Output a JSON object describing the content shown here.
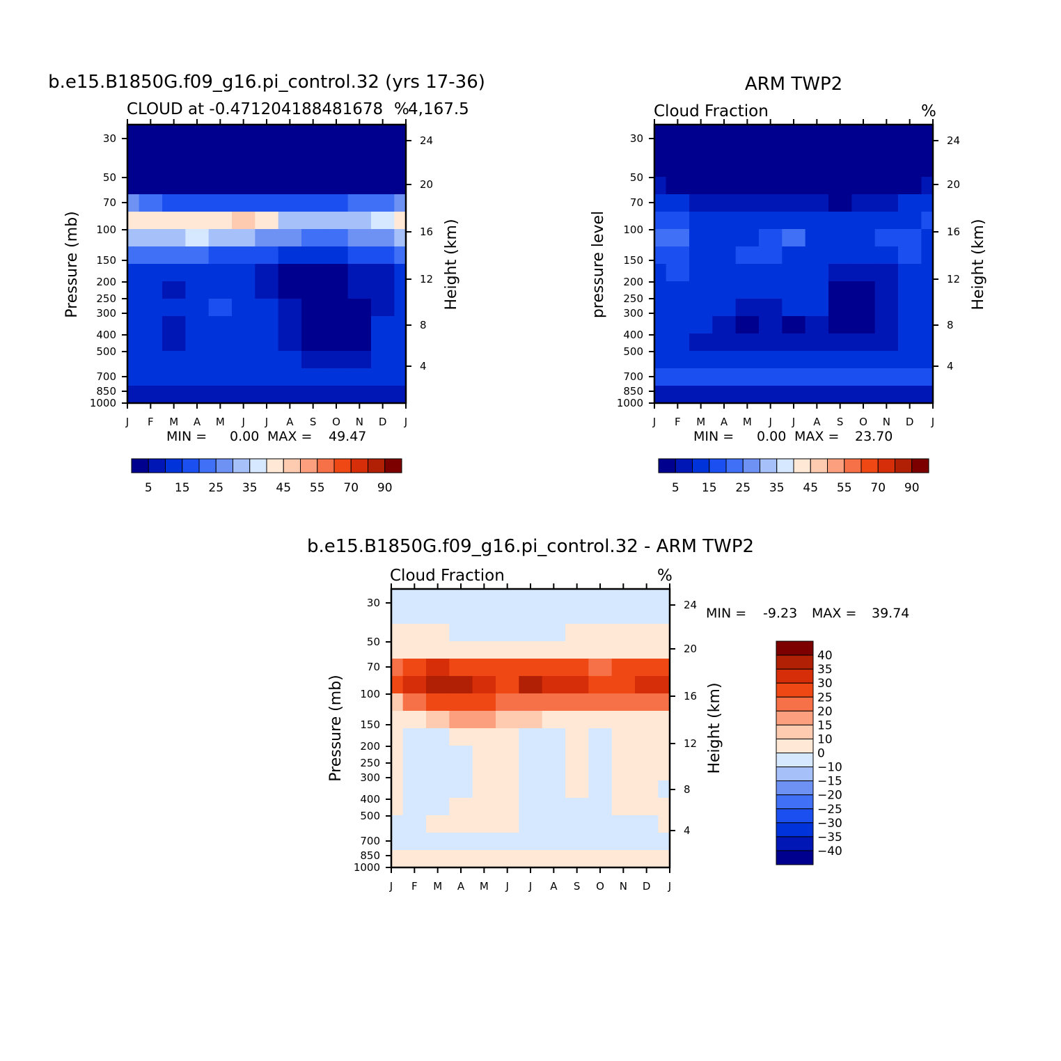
{
  "colors": {
    "seq": [
      "#00008f",
      "#0016b5",
      "#0033d9",
      "#1c4ff0",
      "#3f70f5",
      "#6d92f4",
      "#a6c0fa",
      "#d6e8ff",
      "#ffe9d6",
      "#ffcbb0",
      "#fb9f7f",
      "#f77148",
      "#f04814",
      "#d62e08",
      "#b11f05",
      "#7c0000"
    ],
    "diff": [
      "#00008f",
      "#0016b5",
      "#0033d9",
      "#1c4ff0",
      "#3f70f5",
      "#6d92f4",
      "#a6c0fa",
      "#d6e8ff",
      "#ffe9d6",
      "#ffcbb0",
      "#fb9f7f",
      "#f77148",
      "#f04814",
      "#d62e08",
      "#b11f05",
      "#7c0000"
    ]
  },
  "panels": {
    "model": {
      "title": "b.e15.B1850G.f09_g16.pi_control.32 (yrs 17-36)",
      "subtitle": "CLOUD at -0.471204188481678",
      "subtitle_right_a": "%",
      "subtitle_right_b": "4,167.5",
      "ylabel": "Pressure (mb)",
      "ylabel_right": "Height (km)",
      "min_label": "MIN =",
      "min_value": "0.00",
      "max_label": "MAX =",
      "max_value": "49.47"
    },
    "obs": {
      "title": "ARM TWP2",
      "subtitle": "Cloud Fraction",
      "subtitle_right": "%",
      "ylabel": "pressure level",
      "ylabel_right": "Height (km)",
      "min_label": "MIN =",
      "min_value": "0.00",
      "max_label": "MAX =",
      "max_value": "23.70"
    },
    "diff": {
      "title": "b.e15.B1850G.f09_g16.pi_control.32 - ARM TWP2",
      "subtitle": "Cloud Fraction",
      "subtitle_right": "%",
      "ylabel": "Pressure (mb)",
      "ylabel_right": "Height (km)",
      "min_label": "MIN =",
      "min_value": "-9.23",
      "max_label": "MAX =",
      "max_value": "39.74"
    }
  },
  "chart_data": [
    {
      "type": "heatmap",
      "name": "model",
      "x": [
        "J",
        "F",
        "M",
        "A",
        "M",
        "J",
        "J",
        "A",
        "S",
        "O",
        "N",
        "D",
        "J"
      ],
      "y_pressure_ticks": [
        "30",
        "50",
        "70",
        "100",
        "150",
        "200",
        "250",
        "300",
        "400",
        "500",
        "700",
        "850",
        "1000"
      ],
      "y_height_ticks": [
        "24",
        "20",
        "16",
        "12",
        "8",
        "4"
      ],
      "levels": [
        5,
        10,
        15,
        20,
        25,
        30,
        35,
        40,
        45,
        50,
        55,
        60,
        70,
        80,
        90
      ],
      "colorbar_labels": [
        "5",
        "15",
        "25",
        "35",
        "45",
        "55",
        "70",
        "90"
      ],
      "ylim": [
        1000,
        20
      ],
      "values": [
        [
          0,
          0,
          0,
          0,
          0,
          0,
          0,
          0,
          0,
          0,
          0,
          0,
          0
        ],
        [
          0,
          0,
          0,
          0,
          0,
          0,
          0,
          0,
          0,
          0,
          0,
          0,
          0
        ],
        [
          0,
          0,
          0,
          0,
          0,
          0,
          0,
          0,
          0,
          0,
          0,
          0,
          0
        ],
        [
          4,
          3,
          2,
          2,
          2,
          2,
          2,
          2,
          2,
          2,
          3,
          3,
          4
        ],
        [
          25,
          22,
          18,
          15,
          15,
          15,
          18,
          15,
          15,
          18,
          20,
          22,
          25
        ],
        [
          40,
          42,
          44,
          40,
          42,
          46,
          40,
          34,
          33,
          33,
          34,
          35,
          40
        ],
        [
          30,
          32,
          30,
          36,
          32,
          30,
          28,
          26,
          24,
          24,
          26,
          28,
          30
        ],
        [
          22,
          24,
          24,
          20,
          18,
          18,
          16,
          14,
          14,
          14,
          16,
          18,
          20
        ],
        [
          14,
          14,
          12,
          12,
          12,
          10,
          8,
          4,
          4,
          4,
          6,
          8,
          10
        ],
        [
          12,
          12,
          8,
          12,
          12,
          12,
          8,
          4,
          4,
          4,
          6,
          8,
          10
        ],
        [
          12,
          12,
          10,
          14,
          16,
          12,
          10,
          6,
          4,
          4,
          4,
          8,
          10
        ],
        [
          12,
          12,
          8,
          12,
          12,
          12,
          10,
          6,
          4,
          4,
          4,
          10,
          12
        ],
        [
          12,
          12,
          6,
          12,
          12,
          12,
          10,
          6,
          4,
          4,
          4,
          10,
          12
        ],
        [
          12,
          12,
          10,
          12,
          12,
          12,
          12,
          10,
          8,
          8,
          8,
          10,
          12
        ],
        [
          14,
          14,
          14,
          14,
          14,
          14,
          14,
          14,
          14,
          14,
          14,
          14,
          14
        ],
        [
          8,
          8,
          8,
          8,
          8,
          8,
          8,
          8,
          8,
          8,
          8,
          8,
          8
        ]
      ]
    },
    {
      "type": "heatmap",
      "name": "obs",
      "x": [
        "J",
        "F",
        "M",
        "A",
        "M",
        "J",
        "J",
        "A",
        "S",
        "O",
        "N",
        "D",
        "J"
      ],
      "y_pressure_ticks": [
        "30",
        "50",
        "70",
        "100",
        "150",
        "200",
        "250",
        "300",
        "400",
        "500",
        "700",
        "850",
        "1000"
      ],
      "y_height_ticks": [
        "24",
        "20",
        "16",
        "12",
        "8",
        "4"
      ],
      "levels": [
        5,
        10,
        15,
        20,
        25,
        30,
        35,
        40,
        45,
        50,
        55,
        60,
        70,
        80,
        90
      ],
      "colorbar_labels": [
        "5",
        "15",
        "25",
        "35",
        "45",
        "55",
        "70",
        "90"
      ],
      "ylim": [
        1000,
        20
      ],
      "values": [
        [
          0,
          0,
          0,
          0,
          0,
          0,
          0,
          0,
          0,
          0,
          0,
          0,
          0
        ],
        [
          0,
          0,
          0,
          0,
          0,
          0,
          0,
          0,
          0,
          0,
          0,
          0,
          0
        ],
        [
          0,
          0,
          0,
          0,
          0,
          0,
          0,
          0,
          0,
          0,
          0,
          0,
          0
        ],
        [
          6,
          4,
          2,
          2,
          2,
          2,
          2,
          2,
          2,
          2,
          2,
          4,
          8
        ],
        [
          12,
          10,
          8,
          6,
          6,
          8,
          6,
          6,
          4,
          6,
          8,
          10,
          14
        ],
        [
          18,
          16,
          14,
          12,
          12,
          14,
          12,
          12,
          12,
          12,
          14,
          14,
          16
        ],
        [
          24,
          22,
          12,
          12,
          14,
          18,
          20,
          12,
          14,
          14,
          16,
          16,
          14
        ],
        [
          18,
          18,
          14,
          12,
          16,
          16,
          12,
          12,
          12,
          12,
          14,
          16,
          14
        ],
        [
          14,
          18,
          12,
          12,
          12,
          12,
          10,
          12,
          8,
          6,
          8,
          10,
          12
        ],
        [
          14,
          14,
          12,
          12,
          10,
          10,
          10,
          10,
          4,
          4,
          8,
          10,
          12
        ],
        [
          12,
          12,
          10,
          10,
          8,
          8,
          10,
          10,
          4,
          4,
          8,
          10,
          12
        ],
        [
          12,
          12,
          10,
          8,
          4,
          8,
          4,
          8,
          4,
          4,
          8,
          10,
          12
        ],
        [
          12,
          10,
          8,
          8,
          8,
          8,
          8,
          8,
          8,
          8,
          8,
          10,
          12
        ],
        [
          14,
          12,
          12,
          12,
          12,
          12,
          12,
          12,
          12,
          12,
          12,
          12,
          14
        ],
        [
          16,
          16,
          16,
          16,
          16,
          16,
          16,
          16,
          16,
          16,
          16,
          16,
          16
        ],
        [
          6,
          6,
          6,
          6,
          6,
          6,
          6,
          6,
          6,
          6,
          6,
          6,
          6
        ]
      ]
    },
    {
      "type": "heatmap",
      "name": "diff",
      "x": [
        "J",
        "F",
        "M",
        "A",
        "M",
        "J",
        "J",
        "A",
        "S",
        "O",
        "N",
        "D",
        "J"
      ],
      "y_pressure_ticks": [
        "30",
        "50",
        "70",
        "100",
        "150",
        "200",
        "250",
        "300",
        "400",
        "500",
        "700",
        "850",
        "1000"
      ],
      "y_height_ticks": [
        "24",
        "20",
        "16",
        "12",
        "8",
        "4"
      ],
      "levels": [
        -40,
        -35,
        -30,
        -25,
        -20,
        -15,
        -10,
        0,
        10,
        15,
        20,
        25,
        30,
        35,
        40
      ],
      "colorbar_labels": [
        "40",
        "35",
        "30",
        "25",
        "20",
        "15",
        "10",
        "0",
        "-10",
        "-15",
        "-20",
        "-25",
        "-30",
        "-35",
        "-40"
      ],
      "ylim": [
        1000,
        20
      ],
      "values": [
        [
          -2,
          -2,
          -2,
          -2,
          -2,
          -2,
          -2,
          -2,
          -2,
          -2,
          -2,
          -2,
          -2
        ],
        [
          -2,
          -2,
          -2,
          -2,
          -2,
          -2,
          -2,
          -2,
          -2,
          -2,
          -2,
          -2,
          -2
        ],
        [
          2,
          2,
          2,
          -2,
          -2,
          -2,
          -2,
          -2,
          2,
          2,
          2,
          2,
          2
        ],
        [
          4,
          6,
          6,
          6,
          6,
          6,
          6,
          6,
          6,
          6,
          6,
          6,
          6
        ],
        [
          22,
          26,
          30,
          28,
          26,
          26,
          28,
          26,
          26,
          24,
          26,
          28,
          26
        ],
        [
          26,
          30,
          38,
          36,
          30,
          28,
          36,
          30,
          34,
          28,
          28,
          34,
          30
        ],
        [
          12,
          22,
          26,
          28,
          26,
          24,
          24,
          20,
          20,
          20,
          20,
          22,
          24
        ],
        [
          6,
          8,
          12,
          16,
          16,
          10,
          10,
          8,
          8,
          6,
          6,
          6,
          8
        ],
        [
          2,
          -2,
          -2,
          2,
          4,
          2,
          -2,
          -2,
          2,
          -2,
          4,
          2,
          4
        ],
        [
          2,
          -2,
          -2,
          -2,
          2,
          4,
          -2,
          -2,
          2,
          -2,
          2,
          2,
          4
        ],
        [
          2,
          -2,
          -2,
          -2,
          2,
          2,
          -2,
          -2,
          2,
          -2,
          2,
          2,
          2
        ],
        [
          2,
          -2,
          -2,
          -2,
          4,
          2,
          -2,
          -2,
          2,
          -2,
          2,
          2,
          -2
        ],
        [
          2,
          -2,
          -2,
          2,
          2,
          2,
          -2,
          -2,
          -2,
          -2,
          2,
          2,
          2
        ],
        [
          -2,
          -2,
          2,
          2,
          2,
          2,
          -2,
          -2,
          -2,
          -2,
          -2,
          -2,
          2
        ],
        [
          -2,
          -2,
          -2,
          -2,
          -2,
          -2,
          -2,
          -2,
          -2,
          -2,
          -2,
          -2,
          -2
        ],
        [
          2,
          2,
          2,
          2,
          2,
          2,
          2,
          2,
          2,
          2,
          2,
          2,
          2
        ]
      ]
    }
  ]
}
